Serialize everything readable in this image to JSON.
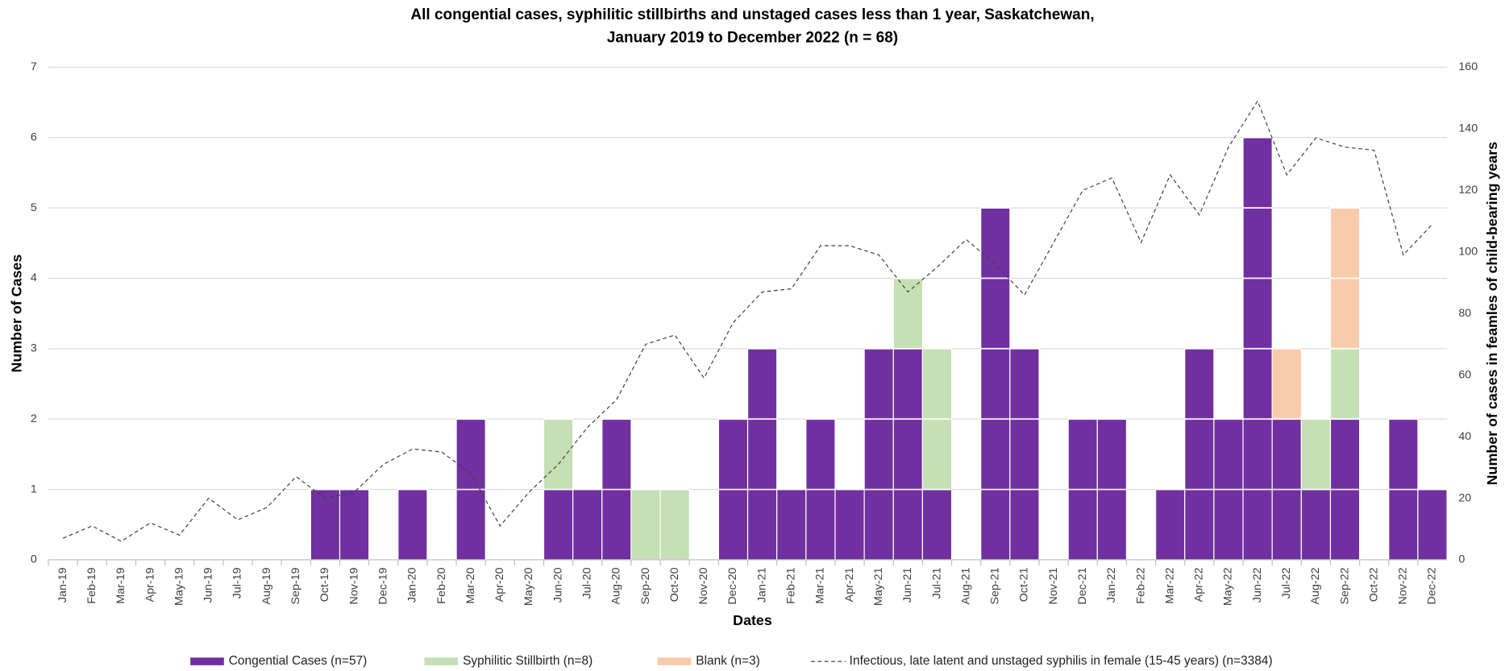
{
  "chart_data": {
    "type": "bar",
    "stacked": true,
    "title": [
      "All congential cases, syphilitic stillbirths and unstaged cases less than 1 year, Saskatchewan,",
      "January 2019 to December 2022 (n = 68)"
    ],
    "x_label": "Dates",
    "y_label": "Number of Cases",
    "y2_label": "Number of cases in feamles of child-bearing years",
    "categories": [
      "Jan-19",
      "Feb-19",
      "Mar-19",
      "Apr-19",
      "May-19",
      "Jun-19",
      "Jul-19",
      "Aug-19",
      "Sep-19",
      "Oct-19",
      "Nov-19",
      "Dec-19",
      "Jan-20",
      "Feb-20",
      "Mar-20",
      "Apr-20",
      "May-20",
      "Jun-20",
      "Jul-20",
      "Aug-20",
      "Sep-20",
      "Oct-20",
      "Nov-20",
      "Dec-20",
      "Jan-21",
      "Feb-21",
      "Mar-21",
      "Apr-21",
      "May-21",
      "Jun-21",
      "Jul-21",
      "Aug-21",
      "Sep-21",
      "Oct-21",
      "Nov-21",
      "Dec-21",
      "Jan-22",
      "Feb-22",
      "Mar-22",
      "Apr-22",
      "May-22",
      "Jun-22",
      "Jul-22",
      "Aug-22",
      "Sep-22",
      "Oct-22",
      "Nov-22",
      "Dec-22"
    ],
    "series": [
      {
        "name": "Congential Cases (n=57)",
        "color": "#7030a0",
        "values": [
          0,
          0,
          0,
          0,
          0,
          0,
          0,
          0,
          0,
          1,
          1,
          0,
          1,
          0,
          2,
          0,
          0,
          1,
          1,
          2,
          0,
          0,
          0,
          2,
          3,
          1,
          2,
          1,
          3,
          3,
          1,
          0,
          5,
          3,
          0,
          2,
          2,
          0,
          1,
          3,
          2,
          6,
          2,
          1,
          2,
          0,
          2,
          1
        ]
      },
      {
        "name": "Syphilitic Stillbirth (n=8)",
        "color": "#c5e0b4",
        "values": [
          0,
          0,
          0,
          0,
          0,
          0,
          0,
          0,
          0,
          0,
          0,
          0,
          0,
          0,
          0,
          0,
          0,
          1,
          0,
          0,
          1,
          1,
          0,
          0,
          0,
          0,
          0,
          0,
          0,
          1,
          2,
          0,
          0,
          0,
          0,
          0,
          0,
          0,
          0,
          0,
          0,
          0,
          0,
          1,
          1,
          0,
          0,
          0
        ]
      },
      {
        "name": "Blank (n=3)",
        "color": "#f8cbad",
        "values": [
          0,
          0,
          0,
          0,
          0,
          0,
          0,
          0,
          0,
          0,
          0,
          0,
          0,
          0,
          0,
          0,
          0,
          0,
          0,
          0,
          0,
          0,
          0,
          0,
          0,
          0,
          0,
          0,
          0,
          0,
          0,
          0,
          0,
          0,
          0,
          0,
          0,
          0,
          0,
          0,
          0,
          0,
          1,
          0,
          2,
          0,
          0,
          0
        ]
      },
      {
        "name": "Infectious, late latent and unstaged syphilis in female (15-45 years) (n=3384)",
        "color": "#404040",
        "type": "line",
        "axis": "y2",
        "values": [
          7,
          11,
          6,
          12,
          8,
          20,
          13,
          17,
          27,
          20,
          22,
          31,
          36,
          35,
          28,
          11,
          22,
          31,
          43,
          52,
          70,
          73,
          59,
          77,
          87,
          88,
          102,
          102,
          99,
          87,
          95,
          104,
          96,
          86,
          103,
          120,
          124,
          103,
          125,
          112,
          134,
          149,
          125,
          137,
          134,
          133,
          99,
          109
        ]
      }
    ],
    "ylim": [
      0,
      7
    ],
    "yticks": [
      0,
      1,
      2,
      3,
      4,
      5,
      6,
      7
    ],
    "y2lim": [
      0,
      160
    ],
    "y2ticks": [
      0,
      20,
      40,
      60,
      80,
      100,
      120,
      140,
      160
    ],
    "grid": true,
    "legend": "bottom"
  }
}
